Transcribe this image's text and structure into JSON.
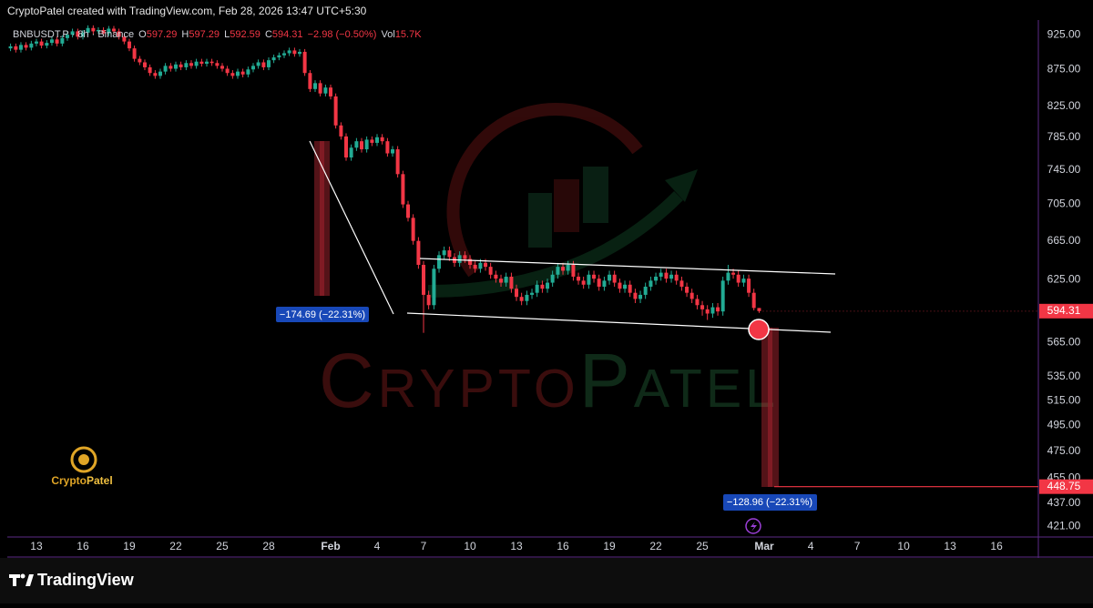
{
  "header": {
    "attribution": "CryptoPatel created with TradingView.com, Feb 28, 2026 13:47 UTC+5:30"
  },
  "chart_data": {
    "type": "candlestick",
    "symbol": "BNBUSDT.P · 8h · Binance",
    "ohlc_labels": [
      "O",
      "H",
      "L",
      "C"
    ],
    "change": "−2.98 (−0.50%)",
    "volume_label": "Vol",
    "volume": "15.7K",
    "up_color": "#22ab94",
    "down_color": "#f23645",
    "log_scale": true,
    "grid": false,
    "x": [
      11.33,
      11.67,
      12,
      12.33,
      12.67,
      13,
      13.33,
      13.67,
      14,
      14.33,
      14.67,
      15,
      15.33,
      15.67,
      16,
      16.33,
      16.67,
      17,
      17.33,
      17.67,
      18,
      18.33,
      18.67,
      19,
      19.33,
      19.67,
      20,
      20.33,
      20.67,
      21,
      21.33,
      21.67,
      22,
      22.33,
      22.67,
      23,
      23.33,
      23.67,
      24,
      24.33,
      24.67,
      25,
      25.33,
      25.67,
      26,
      26.33,
      26.67,
      27,
      27.33,
      27.67,
      28,
      28.33,
      28.67,
      29,
      29.33,
      29.67,
      30,
      30.33,
      30.67,
      31,
      31.33,
      31.67,
      32,
      32.33,
      32.67,
      33,
      33.33,
      33.67,
      34,
      34.33,
      34.67,
      35,
      35.33,
      35.67,
      36,
      36.33,
      36.67,
      37,
      37.33,
      37.67,
      38,
      38.33,
      38.67,
      39,
      39.33,
      39.67,
      40,
      40.33,
      40.67,
      41,
      41.33,
      41.67,
      42,
      42.33,
      42.67,
      43,
      43.33,
      43.67,
      44,
      44.33,
      44.67,
      45,
      45.33,
      45.67,
      46,
      46.33,
      46.67,
      47,
      47.33,
      47.67,
      48,
      48.33,
      48.67,
      49,
      49.33,
      49.67,
      50,
      50.33,
      50.67,
      51,
      51.33,
      51.67,
      52,
      52.33,
      52.67,
      53,
      53.33,
      53.67,
      54,
      54.33,
      54.67,
      55,
      55.33,
      55.67,
      56,
      56.33,
      56.67,
      57,
      57.33,
      57.67,
      58,
      58.33,
      58.67,
      59,
      59.33,
      59.67
    ],
    "open": [
      905,
      908,
      903,
      910,
      906,
      912,
      915,
      909,
      913,
      918,
      912,
      920,
      925,
      930,
      922,
      928,
      935,
      930,
      932,
      927,
      934,
      930,
      922,
      915,
      905,
      890,
      885,
      878,
      870,
      866,
      872,
      880,
      876,
      882,
      878,
      884,
      880,
      886,
      883,
      886,
      884,
      880,
      876,
      870,
      866,
      872,
      868,
      875,
      880,
      885,
      878,
      888,
      892,
      895,
      898,
      902,
      897,
      900,
      870,
      848,
      856,
      842,
      850,
      838,
      800,
      786,
      760,
      772,
      780,
      770,
      782,
      778,
      785,
      780,
      765,
      770,
      740,
      705,
      690,
      665,
      640,
      610,
      600,
      636,
      650,
      655,
      648,
      642,
      650,
      646,
      640,
      636,
      642,
      638,
      630,
      626,
      622,
      628,
      616,
      608,
      604,
      610,
      612,
      620,
      616,
      622,
      630,
      638,
      634,
      640,
      628,
      624,
      620,
      630,
      626,
      618,
      624,
      630,
      622,
      616,
      620,
      612,
      606,
      610,
      618,
      624,
      628,
      632,
      626,
      630,
      624,
      618,
      612,
      606,
      600,
      596,
      592,
      598,
      594,
      624,
      632,
      630,
      622,
      626,
      612,
      597.29
    ],
    "high": [
      912,
      912,
      914,
      914,
      916,
      919,
      919,
      917,
      922,
      922,
      924,
      929,
      934,
      934,
      932,
      939,
      939,
      936,
      936,
      938,
      938,
      934,
      926,
      919,
      909,
      894,
      889,
      882,
      874,
      876,
      884,
      884,
      886,
      886,
      888,
      888,
      890,
      890,
      890,
      890,
      888,
      884,
      880,
      874,
      876,
      876,
      879,
      884,
      889,
      889,
      892,
      896,
      899,
      902,
      906,
      906,
      904,
      904,
      874,
      860,
      860,
      854,
      854,
      842,
      804,
      790,
      776,
      784,
      784,
      786,
      786,
      789,
      789,
      784,
      774,
      774,
      744,
      709,
      694,
      669,
      644,
      614,
      640,
      654,
      659,
      659,
      652,
      654,
      654,
      650,
      644,
      646,
      646,
      642,
      634,
      630,
      632,
      632,
      620,
      612,
      614,
      616,
      624,
      624,
      626,
      634,
      642,
      642,
      644,
      644,
      632,
      628,
      634,
      634,
      630,
      628,
      634,
      634,
      626,
      624,
      624,
      616,
      614,
      622,
      628,
      632,
      636,
      636,
      634,
      634,
      628,
      622,
      616,
      610,
      604,
      600,
      602,
      602,
      628,
      640,
      636,
      634,
      630,
      630,
      616,
      597.29
    ],
    "low": [
      901,
      899,
      899,
      902,
      902,
      908,
      905,
      905,
      909,
      908,
      908,
      916,
      921,
      918,
      918,
      924,
      926,
      926,
      923,
      923,
      926,
      918,
      911,
      901,
      886,
      881,
      874,
      866,
      862,
      862,
      868,
      872,
      872,
      874,
      874,
      876,
      876,
      879,
      879,
      880,
      876,
      872,
      866,
      862,
      862,
      864,
      864,
      871,
      876,
      874,
      874,
      884,
      888,
      891,
      894,
      893,
      893,
      866,
      844,
      844,
      838,
      838,
      834,
      796,
      782,
      756,
      756,
      768,
      766,
      766,
      774,
      774,
      776,
      761,
      761,
      736,
      701,
      686,
      661,
      636,
      574,
      596,
      596,
      632,
      646,
      644,
      638,
      638,
      642,
      636,
      632,
      632,
      634,
      626,
      622,
      618,
      618,
      612,
      604,
      600,
      600,
      606,
      608,
      612,
      612,
      618,
      626,
      630,
      630,
      624,
      620,
      616,
      616,
      622,
      614,
      614,
      620,
      618,
      612,
      612,
      608,
      602,
      602,
      606,
      614,
      620,
      624,
      622,
      622,
      620,
      614,
      608,
      602,
      596,
      590,
      586,
      588,
      590,
      590,
      620,
      626,
      618,
      618,
      608,
      595,
      592.59
    ],
    "close": [
      908,
      903,
      910,
      906,
      912,
      915,
      909,
      913,
      918,
      912,
      920,
      925,
      930,
      922,
      928,
      935,
      930,
      932,
      927,
      934,
      930,
      922,
      915,
      905,
      890,
      885,
      878,
      870,
      866,
      872,
      880,
      876,
      882,
      878,
      884,
      880,
      886,
      883,
      886,
      884,
      880,
      876,
      870,
      866,
      872,
      868,
      875,
      880,
      885,
      878,
      888,
      892,
      895,
      898,
      902,
      897,
      900,
      870,
      848,
      856,
      842,
      850,
      838,
      800,
      786,
      760,
      772,
      780,
      770,
      782,
      778,
      785,
      780,
      765,
      770,
      740,
      705,
      690,
      665,
      640,
      610,
      600,
      636,
      650,
      655,
      648,
      642,
      650,
      646,
      640,
      636,
      642,
      638,
      630,
      626,
      622,
      628,
      616,
      608,
      604,
      610,
      612,
      620,
      616,
      622,
      630,
      638,
      634,
      640,
      628,
      624,
      620,
      630,
      626,
      618,
      624,
      630,
      622,
      616,
      620,
      612,
      606,
      610,
      618,
      624,
      628,
      632,
      626,
      630,
      624,
      618,
      612,
      606,
      600,
      596,
      592,
      598,
      594,
      624,
      632,
      630,
      622,
      626,
      612,
      597.29,
      594.31
    ],
    "xlim": [
      11.12,
      77.7
    ],
    "xticks": [
      13,
      16,
      19,
      22,
      25,
      28,
      {
        "value": 32,
        "label": "Feb"
      },
      {
        "value": 35,
        "label": "4"
      },
      {
        "value": 38,
        "label": "7"
      },
      {
        "value": 41,
        "label": "10"
      },
      {
        "value": 44,
        "label": "13"
      },
      {
        "value": 47,
        "label": "16"
      },
      {
        "value": 50,
        "label": "19"
      },
      {
        "value": 53,
        "label": "22"
      },
      {
        "value": 56,
        "label": "25"
      },
      {
        "value": 60,
        "label": "Mar"
      },
      {
        "value": 63,
        "label": "4"
      },
      {
        "value": 66,
        "label": "7"
      },
      {
        "value": 69,
        "label": "10"
      },
      {
        "value": 72,
        "label": "13"
      },
      {
        "value": 75,
        "label": "16"
      }
    ],
    "ylim": [
      414,
      947
    ],
    "yticks": [
      {
        "value": 925,
        "label": "925.00"
      },
      {
        "value": 875,
        "label": "875.00"
      },
      {
        "value": 825,
        "label": "825.00"
      },
      {
        "value": 785,
        "label": "785.00"
      },
      {
        "value": 745,
        "label": "745.00"
      },
      {
        "value": 705,
        "label": "705.00"
      },
      {
        "value": 665,
        "label": "665.00"
      },
      {
        "value": 625,
        "label": "625.00"
      },
      {
        "value": 565,
        "label": "565.00"
      },
      {
        "value": 535,
        "label": "535.00"
      },
      {
        "value": 515,
        "label": "515.00"
      },
      {
        "value": 495,
        "label": "495.00"
      },
      {
        "value": 475,
        "label": "475.00"
      },
      {
        "value": 455,
        "label": "455.00"
      },
      {
        "value": 437,
        "label": "437.00"
      },
      {
        "value": 421,
        "label": "421.00"
      }
    ],
    "target": 448.75,
    "measures": [
      "−174.69 (−22.31%)",
      "−128.96 (−22.31%)"
    ]
  },
  "watermark": {
    "left": "Crypto",
    "right": "Patel"
  },
  "logo": {
    "left": "Crypto",
    "right": "Patel"
  },
  "footer": {
    "brand": "TradingView"
  }
}
